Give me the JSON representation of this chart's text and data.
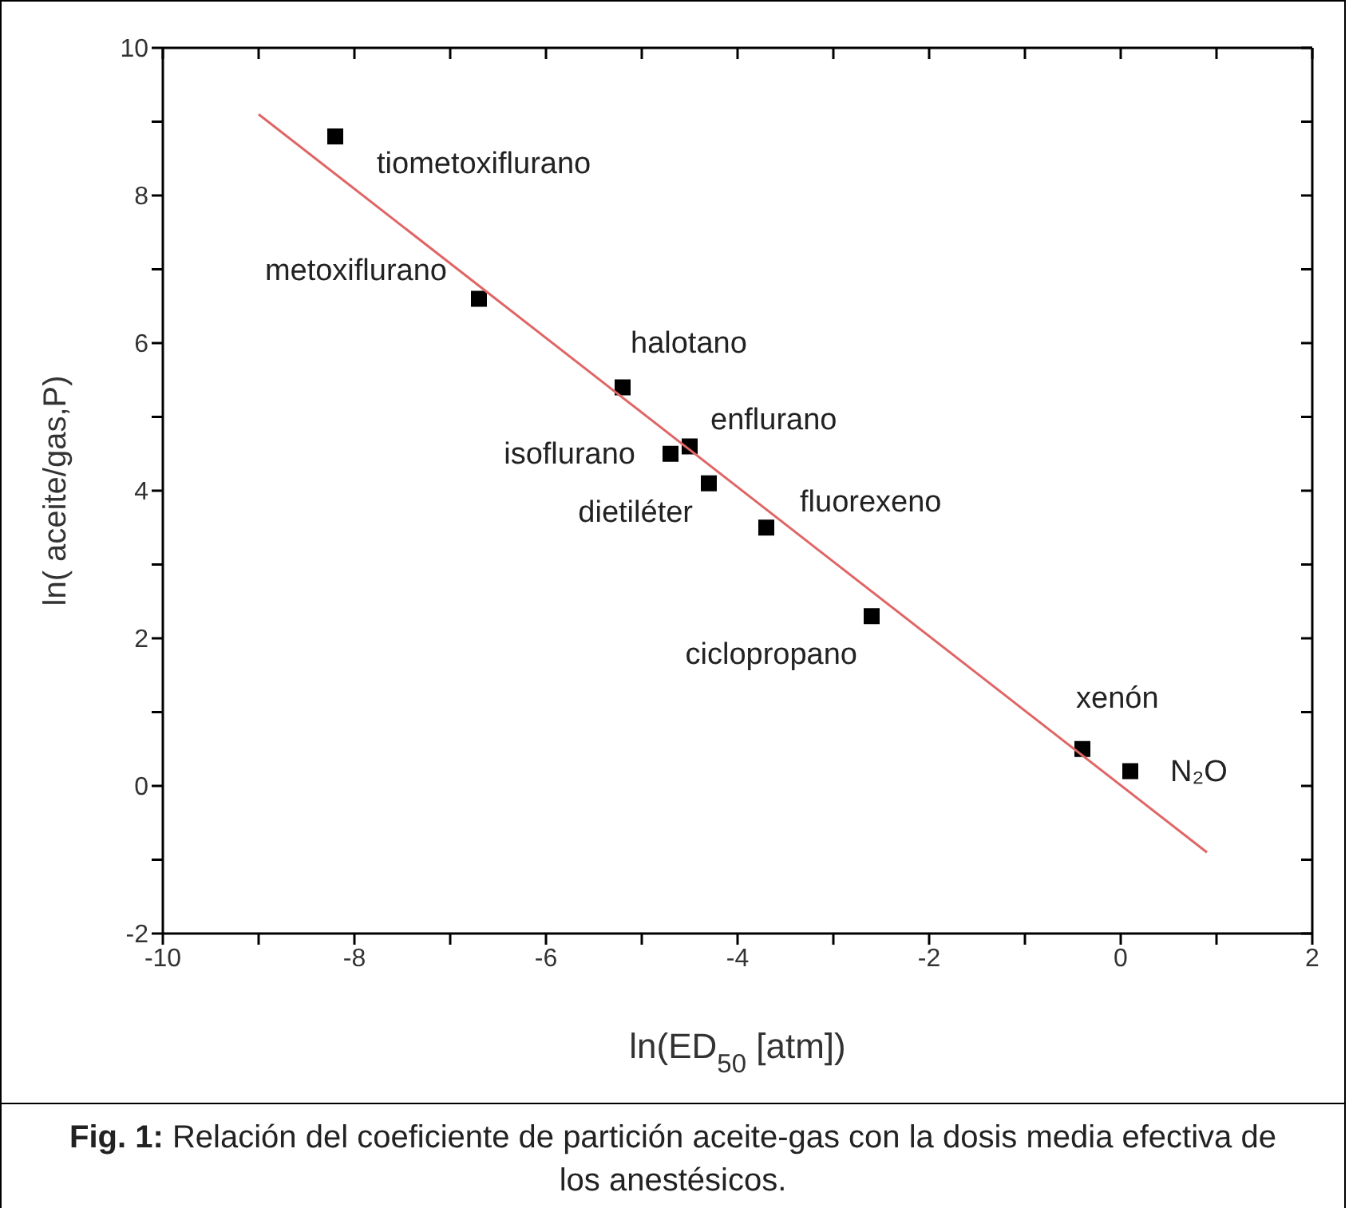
{
  "chart_data": {
    "type": "scatter",
    "xlabel": "ln(ED$_{50}$ [atm])",
    "ylabel": "ln( aceite/gas,P)",
    "xlim": [
      -10,
      2
    ],
    "ylim": [
      -2,
      10
    ],
    "xticks": [
      -10,
      {
        "value": -9,
        "label": null
      },
      -8,
      {
        "value": -7,
        "label": null
      },
      -6,
      {
        "value": -5,
        "label": null
      },
      -4,
      {
        "value": -3,
        "label": null
      },
      -2,
      {
        "value": -1,
        "label": null
      },
      0,
      {
        "value": 1,
        "label": null
      },
      2
    ],
    "yticks": [
      -2,
      {
        "value": -1,
        "label": null
      },
      0,
      {
        "value": 1,
        "label": null
      },
      2,
      {
        "value": 3,
        "label": null
      },
      4,
      {
        "value": 5,
        "label": null
      },
      6,
      {
        "value": 7,
        "label": null
      },
      8,
      {
        "value": 9,
        "label": null
      },
      10
    ],
    "marker": "square",
    "series": [
      {
        "color": "#000000",
        "x": [
          -8.2,
          -6.7,
          -5.2,
          -4.7,
          -4.5,
          -4.3,
          -3.7,
          -2.6,
          -0.4,
          0.1
        ],
        "values": [
          8.8,
          6.6,
          5.4,
          4.5,
          4.6,
          4.1,
          3.5,
          2.3,
          0.5,
          0.2
        ]
      },
      {
        "type": "line",
        "color": "#e06666",
        "line_style": "solid",
        "marker": "none",
        "x": [
          -9,
          0.9
        ],
        "values": [
          9.1,
          -0.9
        ]
      }
    ],
    "annotations": [
      {
        "text": "tiometoxiflurano",
        "x": -8.2,
        "y": 8.8
      },
      {
        "text": "metoxiflurano",
        "x": -6.7,
        "y": 6.6
      },
      {
        "text": "halotano",
        "x": -5.2,
        "y": 5.4
      },
      {
        "text": "isoflurano",
        "x": -4.7,
        "y": 4.5
      },
      {
        "text": "enflurano",
        "x": -4.5,
        "y": 4.6
      },
      {
        "text": "dietiléter",
        "x": -4.3,
        "y": 4.1
      },
      {
        "text": "fluorexeno",
        "x": -3.7,
        "y": 3.5
      },
      {
        "text": "ciclopropano",
        "x": -2.6,
        "y": 2.3
      },
      {
        "text": "xenón",
        "x": -0.4,
        "y": 0.5
      },
      {
        "text": "N₂O",
        "x": 0.1,
        "y": 0.2
      },
      "Fig. 1: Relación del coeficiente de partición aceite-gas con la dosis media efectiva de los anestésicos."
    ]
  }
}
